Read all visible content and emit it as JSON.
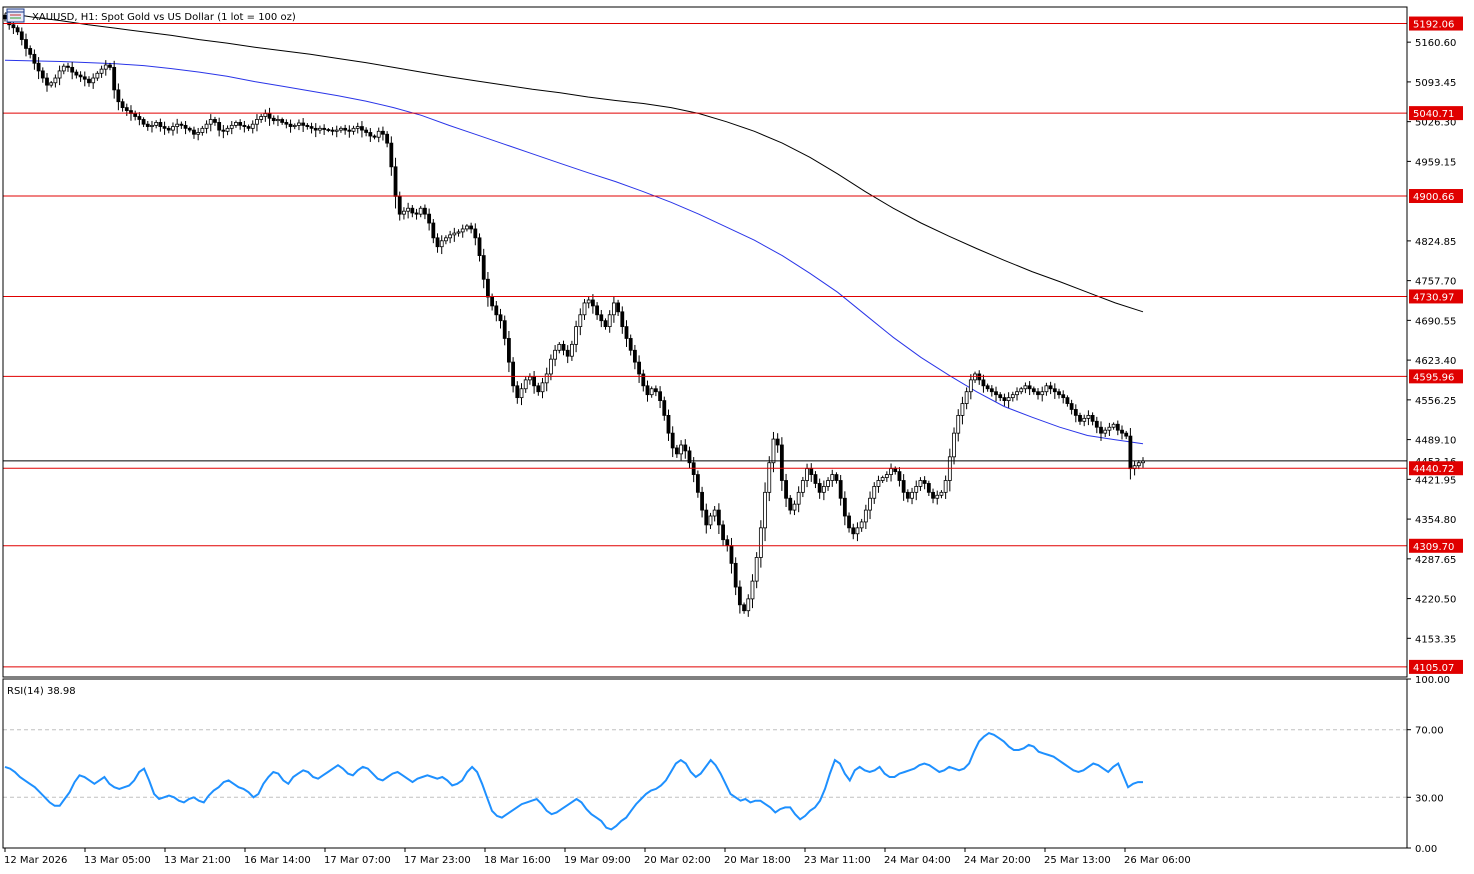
{
  "window": {
    "title": "XAUUSD, H1:  Spot Gold vs US Dollar (1 lot = 100 oz)",
    "icon": "chart-window-icon"
  },
  "colors": {
    "background": "#ffffff",
    "frame": "#000000",
    "level_line": "#e00000",
    "price_line": "#000000",
    "ma_fast": "#2a35e8",
    "ma_slow": "#000000",
    "rsi_line": "#1e90ff",
    "rsi_level": "#c0c0c0",
    "candle_bull": "#ffffff",
    "candle_bear": "#000000"
  },
  "chart_data": [
    {
      "type": "candlestick",
      "symbol": "XAUUSD",
      "timeframe": "H1",
      "title": "XAUUSD, H1:  Spot Gold vs US Dollar (1 lot = 100 oz)",
      "ylim": [
        4088,
        5220
      ],
      "y_ticks": [
        "5160.60",
        "5093.45",
        "5026.30",
        "4959.15",
        "4824.85",
        "4757.70",
        "4690.55",
        "4623.40",
        "4556.25",
        "4489.10",
        "4421.95",
        "4354.80",
        "4287.65",
        "4220.50",
        "4153.35"
      ],
      "x_ticks": [
        "12 Mar 2026",
        "13 Mar 05:00",
        "13 Mar 21:00",
        "16 Mar 14:00",
        "17 Mar 07:00",
        "17 Mar 23:00",
        "18 Mar 16:00",
        "19 Mar 09:00",
        "20 Mar 02:00",
        "20 Mar 18:00",
        "23 Mar 11:00",
        "24 Mar 04:00",
        "24 Mar 20:00",
        "25 Mar 13:00",
        "26 Mar 06:00"
      ],
      "current_price": "4453.16",
      "levels": [
        "5192.06",
        "5040.71",
        "4900.66",
        "4730.97",
        "4595.96",
        "4440.72",
        "4309.70",
        "4105.07"
      ],
      "closes": [
        5200,
        5190,
        5185,
        5178,
        5165,
        5150,
        5140,
        5125,
        5112,
        5100,
        5088,
        5092,
        5100,
        5112,
        5120,
        5118,
        5110,
        5105,
        5102,
        5098,
        5092,
        5100,
        5108,
        5115,
        5122,
        5118,
        5080,
        5060,
        5050,
        5045,
        5040,
        5035,
        5030,
        5022,
        5018,
        5020,
        5025,
        5018,
        5015,
        5012,
        5018,
        5022,
        5020,
        5015,
        5012,
        5005,
        5008,
        5015,
        5022,
        5030,
        5025,
        5012,
        5010,
        5015,
        5020,
        5025,
        5020,
        5018,
        5015,
        5022,
        5030,
        5035,
        5040,
        5032,
        5028,
        5030,
        5025,
        5022,
        5018,
        5020,
        5024,
        5020,
        5018,
        5015,
        5012,
        5015,
        5013,
        5012,
        5010,
        5012,
        5015,
        5012,
        5010,
        5015,
        5018,
        5012,
        5008,
        5002,
        5000,
        5010,
        5005,
        4990,
        4950,
        4900,
        4870,
        4875,
        4880,
        4872,
        4870,
        4880,
        4870,
        4855,
        4830,
        4815,
        4825,
        4830,
        4835,
        4838,
        4840,
        4845,
        4850,
        4845,
        4830,
        4800,
        4760,
        4730,
        4715,
        4700,
        4690,
        4660,
        4620,
        4580,
        4560,
        4575,
        4590,
        4595,
        4580,
        4570,
        4585,
        4600,
        4625,
        4640,
        4650,
        4640,
        4630,
        4650,
        4680,
        4700,
        4720,
        4725,
        4715,
        4700,
        4690,
        4680,
        4700,
        4720,
        4705,
        4680,
        4660,
        4640,
        4620,
        4600,
        4580,
        4565,
        4575,
        4570,
        4555,
        4530,
        4500,
        4475,
        4465,
        4480,
        4470,
        4450,
        4430,
        4400,
        4370,
        4345,
        4360,
        4370,
        4345,
        4320,
        4310,
        4280,
        4240,
        4210,
        4200,
        4220,
        4250,
        4290,
        4340,
        4400,
        4450,
        4490,
        4480,
        4420,
        4390,
        4370,
        4380,
        4400,
        4420,
        4440,
        4430,
        4415,
        4400,
        4410,
        4420,
        4430,
        4420,
        4390,
        4360,
        4340,
        4330,
        4340,
        4350,
        4370,
        4390,
        4410,
        4420,
        4425,
        4430,
        4440,
        4435,
        4420,
        4400,
        4390,
        4400,
        4410,
        4420,
        4415,
        4400,
        4390,
        4395,
        4400,
        4420,
        4460,
        4500,
        4530,
        4550,
        4570,
        4590,
        4600,
        4590,
        4580,
        4575,
        4570,
        4565,
        4560,
        4555,
        4560,
        4565,
        4570,
        4575,
        4580,
        4575,
        4570,
        4565,
        4570,
        4580,
        4575,
        4570,
        4565,
        4560,
        4550,
        4540,
        4530,
        4520,
        4525,
        4530,
        4520,
        4510,
        4500,
        4505,
        4510,
        4515,
        4505,
        4500,
        4495,
        4440,
        4445,
        4450,
        4453
      ],
      "series": [
        {
          "name": "MA fast",
          "values": [
            5130,
            5129,
            5128,
            5126,
            5124,
            5121,
            5116,
            5110,
            5103,
            5094,
            5086,
            5078,
            5070,
            5061,
            5050,
            5037,
            5020,
            5004,
            4988,
            4972,
            4956,
            4940,
            4925,
            4908,
            4890,
            4870,
            4848,
            4826,
            4800,
            4770,
            4738,
            4700,
            4662,
            4628,
            4598,
            4570,
            4545,
            4527,
            4510,
            4496,
            4489,
            4482
          ]
        },
        {
          "name": "MA slow",
          "values": [
            5210,
            5203,
            5197,
            5190,
            5184,
            5178,
            5172,
            5165,
            5159,
            5152,
            5146,
            5140,
            5133,
            5126,
            5118,
            5110,
            5102,
            5095,
            5088,
            5081,
            5075,
            5068,
            5062,
            5057,
            5050,
            5040,
            5026,
            5010,
            4990,
            4966,
            4938,
            4908,
            4880,
            4855,
            4833,
            4812,
            4792,
            4773,
            4756,
            4738,
            4720,
            4705
          ]
        }
      ]
    },
    {
      "type": "line",
      "title": "RSI(14) 38.98",
      "ylim": [
        0,
        100
      ],
      "y_ticks": [
        "100.00",
        "70.00",
        "30.00",
        "0.00"
      ],
      "levels": [
        70,
        30
      ],
      "series": [
        {
          "name": "RSI(14)",
          "values": [
            48,
            47,
            45,
            42,
            40,
            38,
            36,
            33,
            30,
            27,
            25,
            25,
            29,
            33,
            39,
            43,
            42,
            40,
            38,
            40,
            42,
            38,
            36,
            35,
            36,
            37,
            40,
            45,
            47,
            40,
            32,
            29,
            30,
            31,
            30,
            28,
            27,
            29,
            30,
            28,
            27,
            31,
            34,
            36,
            39,
            40,
            38,
            36,
            35,
            33,
            30,
            32,
            38,
            42,
            45,
            44,
            40,
            38,
            42,
            44,
            46,
            45,
            42,
            41,
            43,
            45,
            47,
            49,
            47,
            44,
            43,
            46,
            48,
            47,
            44,
            41,
            40,
            42,
            44,
            45,
            43,
            41,
            39,
            41,
            42,
            43,
            42,
            41,
            42,
            40,
            37,
            38,
            40,
            45,
            48,
            45,
            38,
            30,
            22,
            19,
            18,
            20,
            22,
            24,
            26,
            27,
            28,
            29,
            26,
            22,
            20,
            21,
            23,
            25,
            27,
            29,
            27,
            23,
            20,
            18,
            16,
            12,
            11,
            13,
            16,
            18,
            22,
            26,
            29,
            32,
            34,
            35,
            37,
            40,
            45,
            50,
            52,
            50,
            45,
            42,
            44,
            48,
            52,
            49,
            44,
            38,
            32,
            30,
            28,
            29,
            27,
            28,
            28,
            26,
            24,
            21,
            23,
            24,
            24,
            20,
            17,
            19,
            22,
            24,
            28,
            35,
            44,
            52,
            50,
            44,
            40,
            46,
            48,
            46,
            45,
            46,
            48,
            44,
            42,
            42,
            44,
            45,
            46,
            47,
            49,
            50,
            49,
            47,
            45,
            46,
            48,
            47,
            46,
            47,
            50,
            57,
            63,
            66,
            68,
            67,
            65,
            63,
            60,
            58,
            58,
            59,
            61,
            60,
            57,
            56,
            55,
            54,
            52,
            50,
            48,
            46,
            45,
            46,
            48,
            50,
            49,
            47,
            45,
            48,
            50,
            43,
            36,
            38,
            39,
            38.98
          ]
        }
      ]
    }
  ]
}
